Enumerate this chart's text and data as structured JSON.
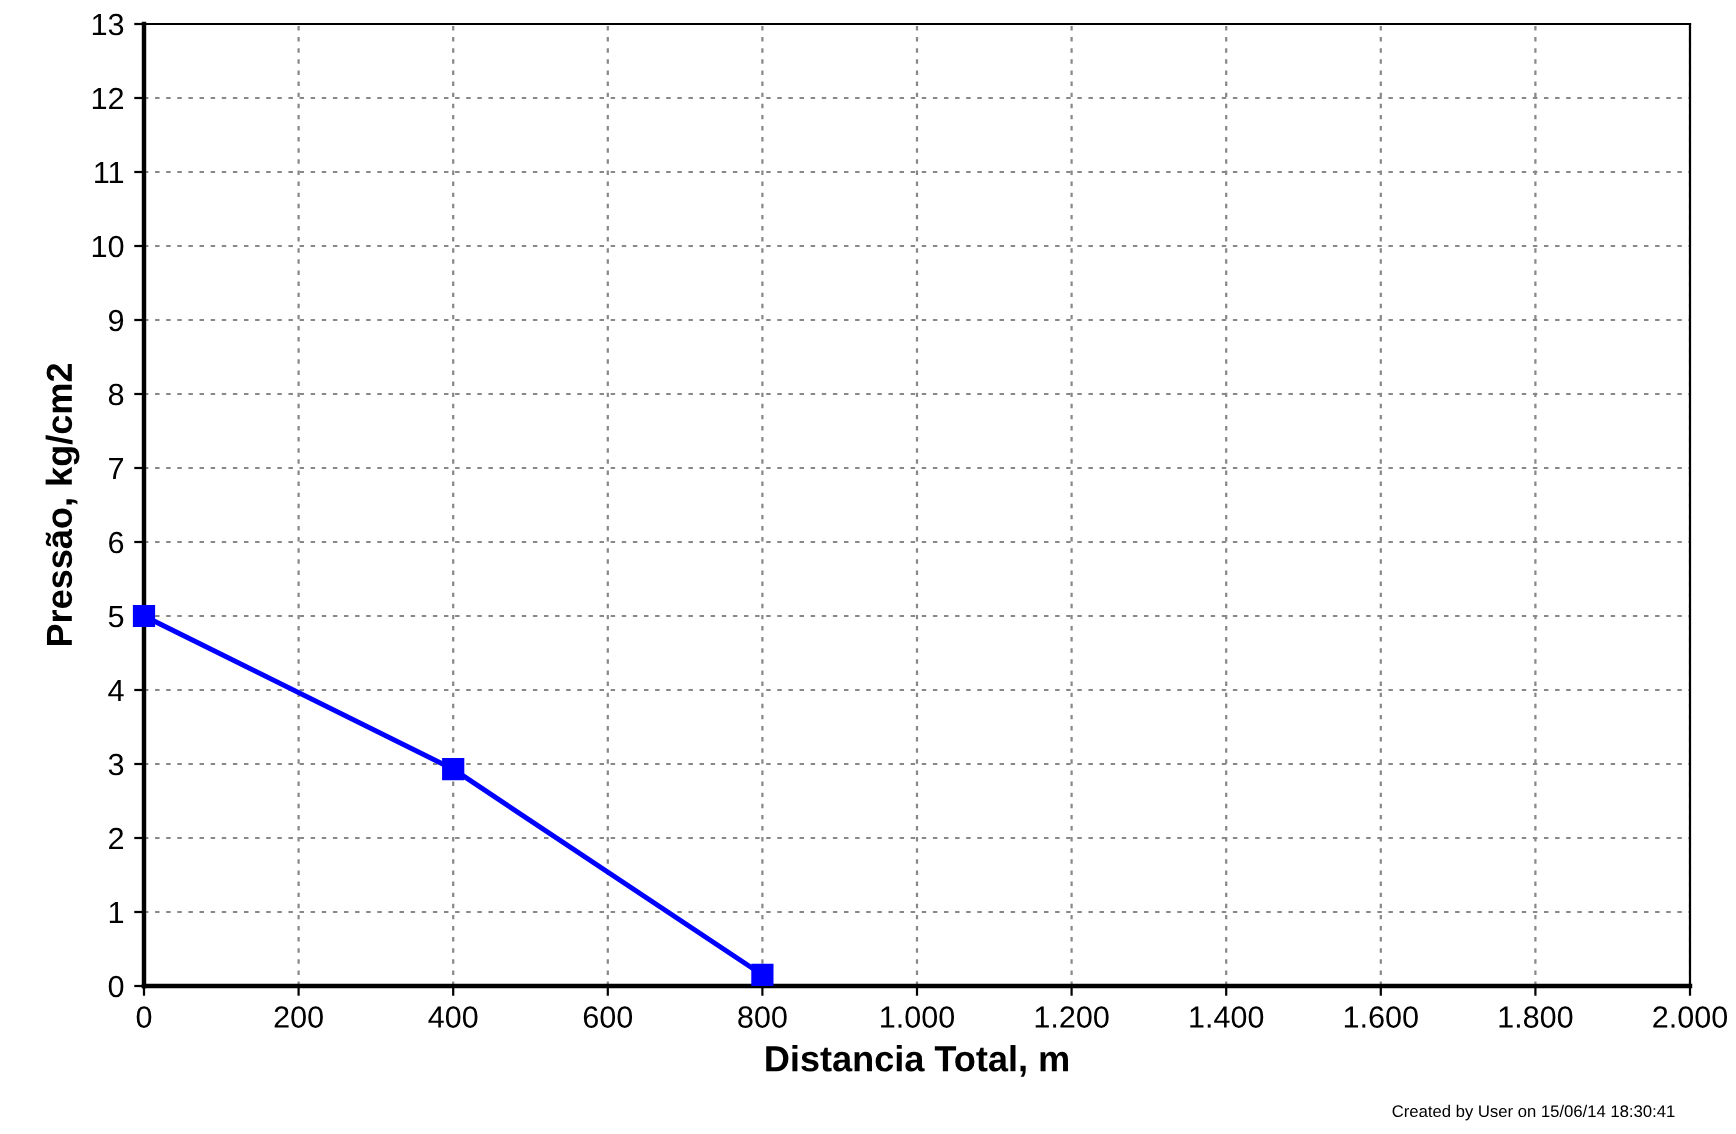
{
  "chart_data": {
    "type": "line",
    "xlabel": "Distancia Total, m",
    "ylabel": "Pressão, kg/cm2",
    "x": [
      0,
      400,
      800
    ],
    "series": [
      {
        "color": "#0000ff",
        "values": [
          5,
          2.93,
          0.15
        ]
      }
    ],
    "marker": "square",
    "line_style": "solid",
    "grid": true,
    "xlim": [
      0,
      2000
    ],
    "xticks": [
      0,
      200,
      400,
      600,
      800,
      {
        "value": 1000,
        "label": "1.000"
      },
      {
        "value": 1200,
        "label": "1.200"
      },
      {
        "value": 1400,
        "label": "1.400"
      },
      {
        "value": 1600,
        "label": "1.600"
      },
      {
        "value": 1800,
        "label": "1.800"
      },
      {
        "value": 2000,
        "label": "2.000"
      }
    ],
    "ylim": [
      0,
      13
    ],
    "yticks": [
      0,
      1,
      2,
      3,
      4,
      5,
      6,
      7,
      8,
      9,
      10,
      11,
      12,
      13
    ],
    "annotations": [
      "Created by User on 15/06/14 18:30:41"
    ]
  }
}
